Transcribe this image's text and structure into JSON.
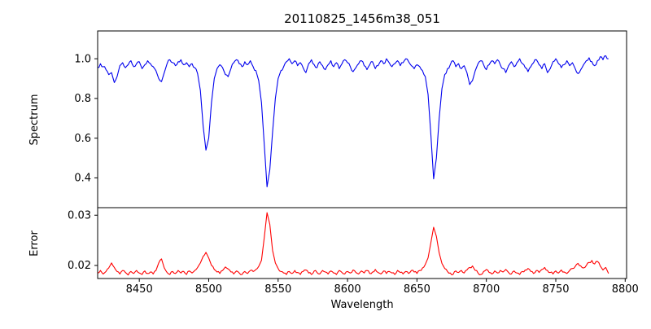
{
  "chart_data": {
    "type": "line",
    "title": "20110825_1456m38_051",
    "xlabel": "Wavelength",
    "xlim": [
      8420,
      8801
    ],
    "xticks": [
      8450,
      8500,
      8550,
      8600,
      8650,
      8700,
      8750,
      8800
    ],
    "x_start": 8420,
    "x_step": 2,
    "n_points": 185,
    "noise_seed": 7,
    "panels": [
      {
        "name": "spectrum",
        "ylabel": "Spectrum",
        "ylim": [
          0.25,
          1.14
        ],
        "yticks": [
          0.4,
          0.6,
          0.8,
          1.0
        ],
        "ytick_labels": [
          "0.4",
          "0.6",
          "0.8",
          "1.0"
        ],
        "noise_amplitude": 0.008
      },
      {
        "name": "error",
        "ylabel": "Error",
        "ylim": [
          0.0174,
          0.0315
        ],
        "yticks": [
          0.02,
          0.03
        ],
        "ytick_labels": [
          "0.02",
          "0.03"
        ],
        "noise_amplitude": 0.00025
      }
    ],
    "series": [
      {
        "name": "spectrum",
        "color": "#0000ee",
        "values": [
          0.955,
          0.975,
          0.96,
          0.945,
          0.92,
          0.93,
          0.88,
          0.91,
          0.965,
          0.98,
          0.955,
          0.97,
          0.99,
          0.96,
          0.975,
          0.985,
          0.95,
          0.97,
          0.99,
          0.975,
          0.96,
          0.94,
          0.9,
          0.885,
          0.93,
          0.975,
          0.995,
          0.98,
          0.965,
          0.985,
          0.995,
          0.97,
          0.98,
          0.96,
          0.975,
          0.955,
          0.925,
          0.84,
          0.66,
          0.54,
          0.6,
          0.78,
          0.9,
          0.95,
          0.97,
          0.955,
          0.92,
          0.91,
          0.95,
          0.98,
          0.995,
          0.975,
          0.96,
          0.985,
          0.97,
          0.99,
          0.96,
          0.94,
          0.89,
          0.78,
          0.57,
          0.355,
          0.44,
          0.63,
          0.8,
          0.9,
          0.94,
          0.96,
          0.985,
          1.0,
          0.975,
          0.99,
          0.965,
          0.98,
          0.955,
          0.93,
          0.975,
          0.995,
          0.97,
          0.955,
          0.985,
          0.965,
          0.945,
          0.97,
          0.99,
          0.96,
          0.98,
          0.95,
          0.975,
          0.995,
          0.98,
          0.96,
          0.935,
          0.955,
          0.975,
          0.99,
          0.965,
          0.945,
          0.97,
          0.985,
          0.95,
          0.965,
          0.99,
          0.975,
          1.0,
          0.98,
          0.96,
          0.975,
          0.99,
          0.965,
          0.98,
          1.0,
          0.985,
          0.965,
          0.95,
          0.97,
          0.96,
          0.94,
          0.91,
          0.82,
          0.62,
          0.395,
          0.5,
          0.7,
          0.85,
          0.92,
          0.95,
          0.97,
          0.99,
          0.96,
          0.975,
          0.95,
          0.965,
          0.93,
          0.87,
          0.89,
          0.94,
          0.975,
          0.99,
          0.97,
          0.945,
          0.97,
          0.99,
          0.975,
          0.995,
          0.97,
          0.95,
          0.93,
          0.965,
          0.985,
          0.96,
          0.98,
          1.0,
          0.975,
          0.955,
          0.935,
          0.96,
          0.98,
          0.995,
          0.97,
          0.95,
          0.975,
          0.93,
          0.95,
          0.985,
          1.0,
          0.975,
          0.955,
          0.97,
          0.99,
          0.965,
          0.98,
          0.95,
          0.925,
          0.945,
          0.97,
          0.99,
          1.005,
          0.985,
          0.965,
          0.99,
          1.01,
          0.995,
          1.015,
          1.0
        ]
      },
      {
        "name": "error",
        "color": "#ff0000",
        "values": [
          0.0185,
          0.019,
          0.0183,
          0.0188,
          0.0195,
          0.0205,
          0.0196,
          0.0188,
          0.0183,
          0.019,
          0.0186,
          0.0181,
          0.0188,
          0.0184,
          0.019,
          0.0185,
          0.0182,
          0.0189,
          0.0184,
          0.0187,
          0.0183,
          0.019,
          0.0205,
          0.0213,
          0.0195,
          0.0186,
          0.0182,
          0.0188,
          0.0184,
          0.019,
          0.0185,
          0.0188,
          0.0182,
          0.0189,
          0.0185,
          0.019,
          0.0196,
          0.0205,
          0.0218,
          0.0226,
          0.0215,
          0.02,
          0.0192,
          0.0187,
          0.0184,
          0.019,
          0.0197,
          0.0193,
          0.0187,
          0.0183,
          0.0189,
          0.0185,
          0.0182,
          0.0188,
          0.0184,
          0.019,
          0.0188,
          0.0192,
          0.0198,
          0.021,
          0.0255,
          0.0305,
          0.0282,
          0.023,
          0.0205,
          0.0194,
          0.0188,
          0.0185,
          0.0182,
          0.0188,
          0.0184,
          0.019,
          0.0186,
          0.0182,
          0.0188,
          0.0191,
          0.0185,
          0.0182,
          0.0189,
          0.0186,
          0.0183,
          0.019,
          0.0187,
          0.0183,
          0.0189,
          0.0185,
          0.0182,
          0.019,
          0.0186,
          0.0183,
          0.0188,
          0.0185,
          0.0191,
          0.0186,
          0.0183,
          0.0189,
          0.0185,
          0.019,
          0.0184,
          0.0187,
          0.0192,
          0.0186,
          0.0183,
          0.0189,
          0.0184,
          0.0188,
          0.0185,
          0.0182,
          0.019,
          0.0186,
          0.0183,
          0.0188,
          0.0184,
          0.019,
          0.0187,
          0.0184,
          0.019,
          0.0195,
          0.0202,
          0.0215,
          0.0245,
          0.0276,
          0.0258,
          0.0225,
          0.0204,
          0.0194,
          0.0188,
          0.0185,
          0.0182,
          0.0189,
          0.0186,
          0.019,
          0.0185,
          0.0191,
          0.0196,
          0.0199,
          0.019,
          0.0185,
          0.0182,
          0.0188,
          0.0192,
          0.0186,
          0.0183,
          0.0189,
          0.0185,
          0.019,
          0.0187,
          0.0192,
          0.0186,
          0.0183,
          0.0189,
          0.0185,
          0.0182,
          0.0188,
          0.0191,
          0.0194,
          0.0188,
          0.0184,
          0.019,
          0.0186,
          0.0192,
          0.0196,
          0.019,
          0.0186,
          0.0183,
          0.0189,
          0.0185,
          0.0191,
          0.0187,
          0.0184,
          0.019,
          0.0194,
          0.0198,
          0.0204,
          0.0199,
          0.0195,
          0.02,
          0.0206,
          0.021,
          0.0203,
          0.0208,
          0.0199,
          0.0191,
          0.0196,
          0.0184
        ]
      }
    ]
  }
}
